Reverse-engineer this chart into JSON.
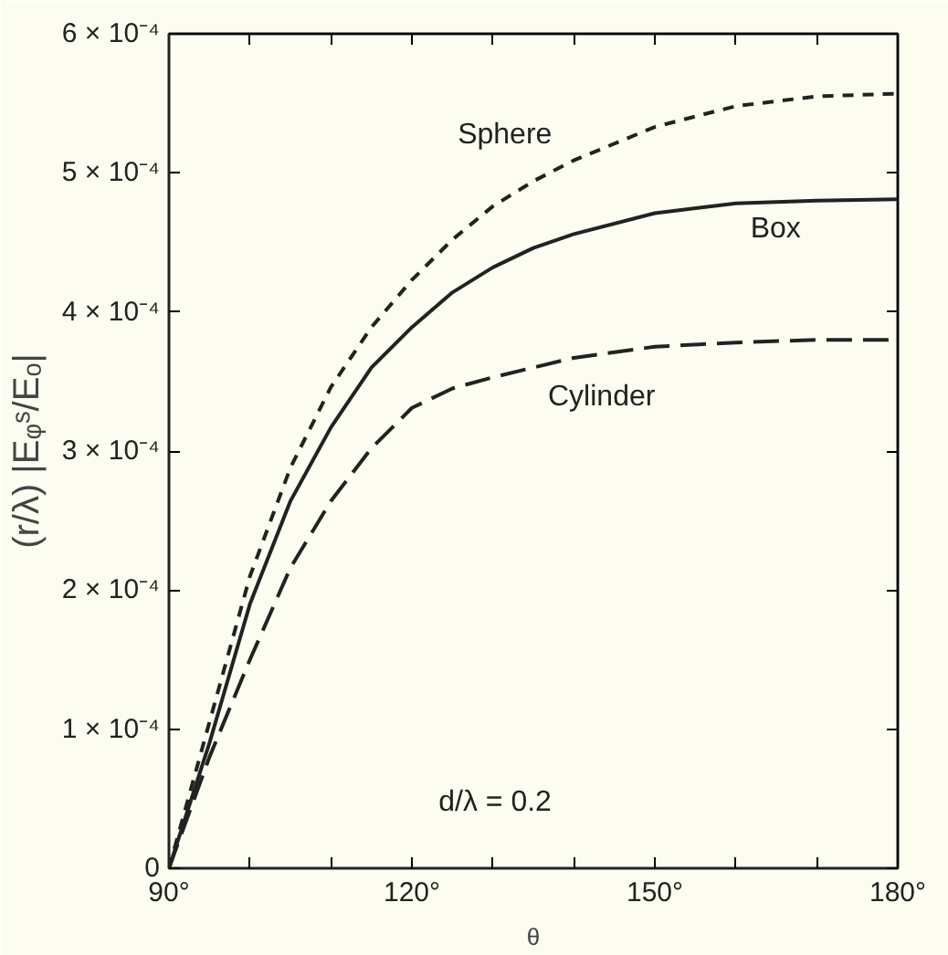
{
  "chart_data": {
    "type": "line",
    "xlabel": "θ",
    "ylabel": "(r/λ) |Eᵩˢ/Eₒ|",
    "x": [
      90,
      95,
      100,
      105,
      110,
      115,
      120,
      125,
      130,
      135,
      140,
      150,
      160,
      170,
      180
    ],
    "series": [
      {
        "name": "Sphere",
        "color": "#222222",
        "line_style": "dotted",
        "values": [
          0,
          0.000105,
          0.00021,
          0.000288,
          0.000346,
          0.000389,
          0.000423,
          0.000452,
          0.000476,
          0.000494,
          0.000509,
          0.000533,
          0.000548,
          0.000555,
          0.000557
        ]
      },
      {
        "name": "Box",
        "color": "#222222",
        "line_style": "solid",
        "values": [
          0,
          9e-05,
          0.00019,
          0.000264,
          0.000317,
          0.00036,
          0.000389,
          0.000414,
          0.000432,
          0.000446,
          0.000456,
          0.000471,
          0.000478,
          0.00048,
          0.000481
        ]
      },
      {
        "name": "Cylinder",
        "color": "#222222",
        "line_style": "dashed",
        "values": [
          0,
          8e-05,
          0.00015,
          0.000216,
          0.000264,
          0.000302,
          0.000331,
          0.000345,
          0.000353,
          0.00036,
          0.000367,
          0.000375,
          0.000378,
          0.00038,
          0.00038
        ]
      }
    ],
    "xlim": [
      90,
      180
    ],
    "ylim": [
      0,
      0.0006
    ],
    "xticks": [
      {
        "value": 90,
        "label": "90°"
      },
      {
        "value": 100,
        "label": null
      },
      {
        "value": 110,
        "label": null
      },
      {
        "value": 120,
        "label": "120°"
      },
      {
        "value": 130,
        "label": null
      },
      {
        "value": 140,
        "label": null
      },
      {
        "value": 150,
        "label": "150°"
      },
      {
        "value": 160,
        "label": null
      },
      {
        "value": 170,
        "label": null
      },
      {
        "value": 180,
        "label": "180°"
      }
    ],
    "yticks": [
      0,
      {
        "value": 0.0001,
        "label": "1 × 10⁻⁴"
      },
      {
        "value": 0.0002,
        "label": "2 × 10⁻⁴"
      },
      {
        "value": 0.0003,
        "label": "3 × 10⁻⁴"
      },
      {
        "value": 0.0004,
        "label": "4 × 10⁻⁴"
      },
      {
        "value": 0.0005,
        "label": "5 × 10⁻⁴"
      },
      {
        "value": 0.0006,
        "label": "6 × 10⁻⁴"
      }
    ],
    "annotations": [
      "d/λ = 0.2"
    ],
    "grid": false,
    "marker": "none"
  }
}
